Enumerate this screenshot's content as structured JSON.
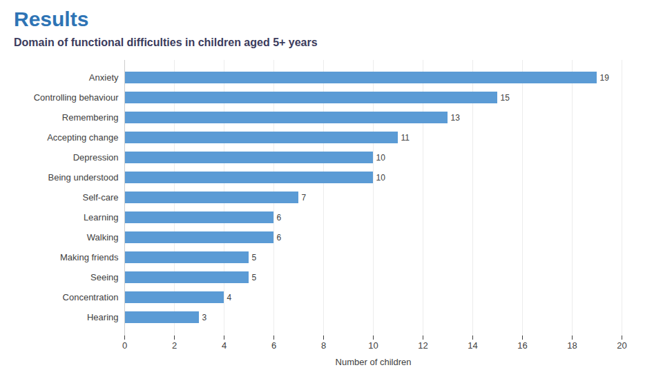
{
  "chart_data": {
    "type": "bar",
    "orientation": "horizontal",
    "title": "Results",
    "subtitle": "Domain of functional difficulties in children aged 5+ years",
    "categories": [
      "Anxiety",
      "Controlling behaviour",
      "Remembering",
      "Accepting change",
      "Depression",
      "Being understood",
      "Self-care",
      "Learning",
      "Walking",
      "Making friends",
      "Seeing",
      "Concentration",
      "Hearing"
    ],
    "values": [
      19,
      15,
      13,
      11,
      10,
      10,
      7,
      6,
      6,
      5,
      5,
      4,
      3
    ],
    "color": "#5B9BD5",
    "xlabel": "Number of children",
    "xlim": [
      0,
      20
    ],
    "xticks": [
      0,
      2,
      4,
      6,
      8,
      10,
      12,
      14,
      16,
      18,
      20
    ],
    "grid": true,
    "data_labels": true
  }
}
